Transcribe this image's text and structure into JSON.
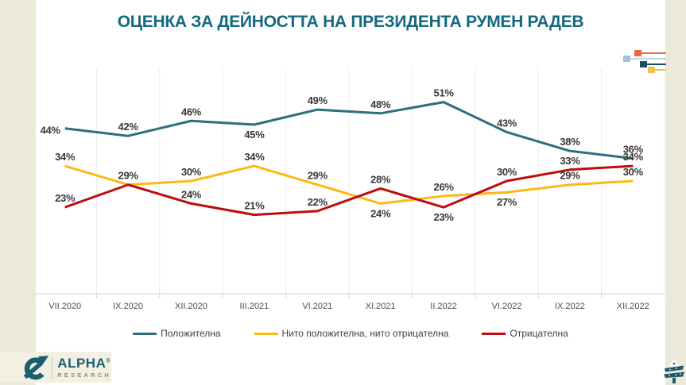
{
  "title": "ОЦЕНКА ЗА ДЕЙНОСТТА НА ПРЕЗИДЕНТА РУМЕН РАДЕВ",
  "chart_data": {
    "type": "line",
    "title": "ОЦЕНКА ЗА ДЕЙНОСТТА НА ПРЕЗИДЕНТА РУМЕН РАДЕВ",
    "categories": [
      "VII.2020",
      "IX.2020",
      "XII.2020",
      "III.2021",
      "VI.2021",
      "XI.2021",
      "II.2022",
      "VI.2022",
      "IX.2022",
      "XII.2022"
    ],
    "series": [
      {
        "name": "Положителна",
        "color": "#2D6E7F",
        "values": [
          44,
          42,
          46,
          45,
          49,
          48,
          51,
          43,
          38,
          36
        ],
        "label_pos": [
          "left",
          "above",
          "above",
          "below",
          "above",
          "above",
          "above",
          "above",
          "above",
          "above"
        ]
      },
      {
        "name": "Нито положителна, нито отрицателна",
        "color": "#FDB913",
        "values": [
          34,
          29,
          30,
          34,
          29,
          24,
          26,
          27,
          29,
          30
        ],
        "label_pos": [
          "above",
          "above",
          "above",
          "above",
          "above",
          "below",
          "above",
          "below",
          "above",
          "above"
        ]
      },
      {
        "name": "Отрицателна",
        "color": "#BE0B10",
        "values": [
          23,
          29,
          24,
          21,
          22,
          28,
          23,
          30,
          33,
          34
        ],
        "label_pos": [
          "above",
          "none",
          "above",
          "above",
          "above",
          "above",
          "below",
          "above",
          "above",
          "above"
        ]
      }
    ],
    "unit": "%",
    "ylim": [
      0,
      60
    ],
    "grid": "vertical-light",
    "legend_position": "bottom",
    "xlabel": "",
    "ylabel": ""
  },
  "legend_note": "line swatches match series colors",
  "decoration": {
    "items": [
      {
        "name": "coral-square-line",
        "color": "#E8684E"
      },
      {
        "name": "lightblue-square-line",
        "color": "#9CC8D6"
      },
      {
        "name": "darkteal-square-line",
        "color": "#1A4E66"
      },
      {
        "name": "yellow-square-line",
        "color": "#F2BF55"
      }
    ]
  },
  "logo": {
    "brand": "ALPHA",
    "reg": "®",
    "sub": "RESEARCH"
  },
  "colors": {
    "page_bg": "#ECE9DA",
    "panel_bg": "#FFFFFF",
    "title": "#15697E",
    "axis_line": "#CFCFCF",
    "gridline": "#EDEDED",
    "axis_label": "#4C4C4C",
    "data_label": "#383838"
  }
}
